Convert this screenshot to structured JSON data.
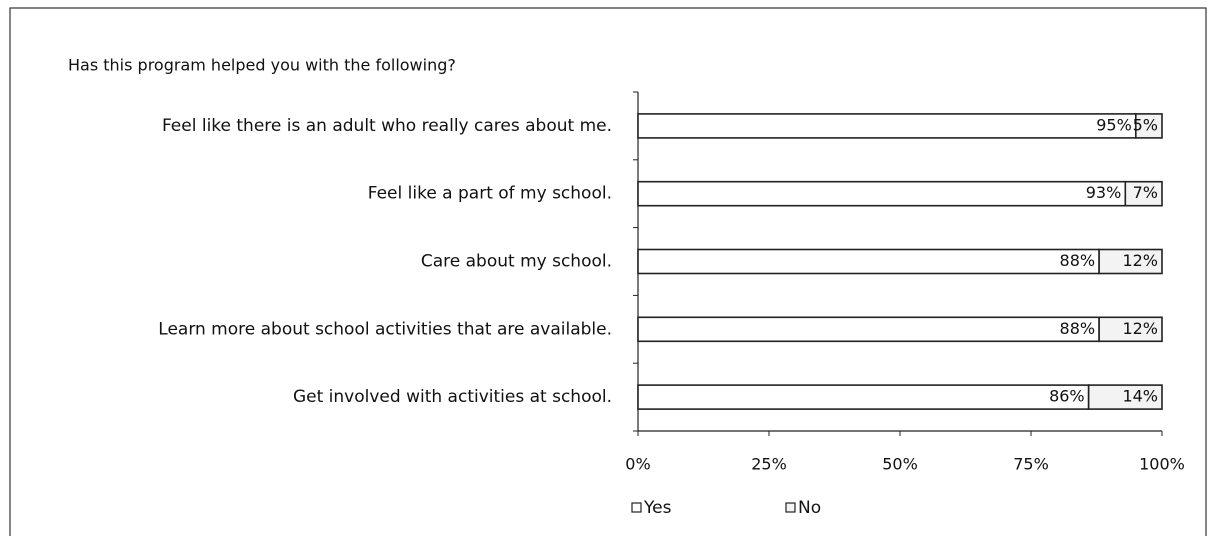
{
  "chart_data": {
    "type": "stacked_bar_horizontal",
    "title": "Has this program helped you with the following?",
    "categories": [
      "Feel like there is an adult who really cares about me.",
      "Feel like a part of my school.",
      "Care about my school.",
      "Learn more about school activities that are available.",
      "Get involved with activities at school."
    ],
    "series": [
      {
        "name": "Yes",
        "color": "#ffffff",
        "values": [
          95,
          93,
          88,
          88,
          86
        ],
        "value_labels": [
          "95%",
          "93%",
          "88%",
          "88%",
          "86%"
        ]
      },
      {
        "name": "No",
        "color": "#f3f3f3",
        "values": [
          5,
          7,
          12,
          12,
          14
        ],
        "value_labels": [
          "5%",
          "7%",
          "12%",
          "12%",
          "14%"
        ]
      }
    ],
    "xlim": [
      0,
      100
    ],
    "xticks": [
      {
        "value": 0,
        "label": "0%"
      },
      {
        "value": 25,
        "label": "25%"
      },
      {
        "value": 50,
        "label": "50%"
      },
      {
        "value": 75,
        "label": "75%"
      },
      {
        "value": 100,
        "label": "100%"
      }
    ],
    "legend": "bottom"
  }
}
